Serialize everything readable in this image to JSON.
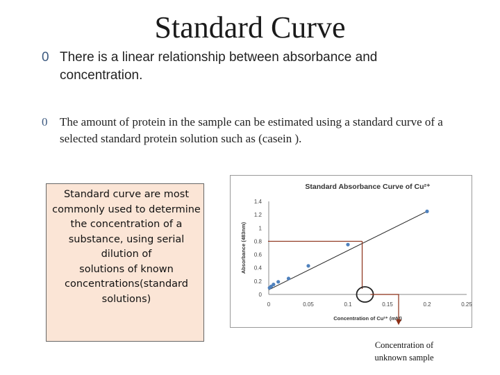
{
  "slide": {
    "title": "Standard Curve",
    "bullets": [
      {
        "marker": "0",
        "text": "There is a linear relationship between absorbance and concentration."
      },
      {
        "marker": "0",
        "text": "The amount of protein in the sample can be estimated using a standard curve of a selected standard protein solution such as (casein )."
      }
    ],
    "note": "Standard curve are most commonly used to determine\nthe concentration of a substance, using serial dilution of\nsolutions of known concentrations(standard solutions)",
    "callout": "Concentration of unknown sample"
  },
  "chart_data": {
    "type": "scatter",
    "title": "Standard Absorbance Curve of Cu²⁺",
    "xlabel": "Concentration of Cu²⁺ (mM)",
    "ylabel": "Absorbance (483nm)",
    "xlim": [
      0,
      0.25
    ],
    "ylim": [
      0,
      1.4
    ],
    "xticks": [
      "0",
      "0.05",
      "0.1",
      "0.15",
      "0.2",
      "0.25"
    ],
    "yticks": [
      "0",
      "0.2",
      "0.4",
      "0.6",
      "0.8",
      "1",
      "1.2",
      "1.4"
    ],
    "x": [
      0.001,
      0.003,
      0.006,
      0.012,
      0.025,
      0.05,
      0.1,
      0.2
    ],
    "y": [
      0.1,
      0.12,
      0.15,
      0.19,
      0.24,
      0.43,
      0.75,
      1.25
    ],
    "trendline": {
      "x": [
        0,
        0.2
      ],
      "y": [
        0.07,
        1.25
      ]
    },
    "unknown": {
      "x": 0.118,
      "y": 0.8
    },
    "colors": {
      "points": "#4f81bd",
      "line": "#222222",
      "lookup": "#8b2e16"
    }
  }
}
